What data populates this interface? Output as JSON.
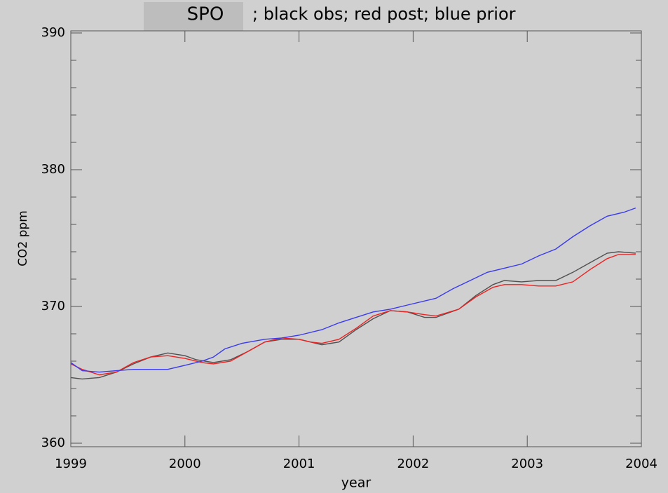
{
  "chart_data": {
    "type": "line",
    "title": "SPO",
    "subtitle": "; black obs; red post; blue prior",
    "xlabel": "year",
    "ylabel": "CO2 ppm",
    "xlim": [
      1999,
      2004
    ],
    "xticks": [
      1999,
      2000,
      2001,
      2002,
      2003,
      2004
    ],
    "ylim": [
      360,
      390
    ],
    "yticks": [
      360,
      370,
      380,
      390
    ],
    "yminorticks": [
      362,
      364,
      366,
      368,
      372,
      374,
      376,
      378,
      382,
      384,
      386,
      388
    ],
    "series": [
      {
        "color": "#505050",
        "x": [
          1999.0,
          1999.1,
          1999.25,
          1999.4,
          1999.55,
          1999.7,
          1999.85,
          2000.0,
          2000.1,
          2000.25,
          2000.4,
          2000.55,
          2000.7,
          2000.85,
          2001.0,
          2001.1,
          2001.2,
          2001.35,
          2001.5,
          2001.65,
          2001.8,
          2001.95,
          2002.1,
          2002.2,
          2002.4,
          2002.55,
          2002.7,
          2002.8,
          2002.95,
          2003.1,
          2003.25,
          2003.4,
          2003.55,
          2003.7,
          2003.8,
          2003.95
        ],
        "values": [
          364.8,
          364.7,
          364.8,
          365.2,
          365.8,
          366.3,
          366.6,
          366.4,
          366.1,
          365.9,
          366.1,
          366.7,
          367.4,
          367.6,
          367.6,
          367.4,
          367.2,
          367.4,
          368.3,
          369.1,
          369.7,
          369.6,
          369.2,
          369.2,
          369.8,
          370.8,
          371.6,
          371.9,
          371.8,
          371.9,
          371.9,
          372.5,
          373.2,
          373.9,
          374.0,
          373.9
        ]
      },
      {
        "color": "#f02020",
        "x": [
          1999.0,
          1999.1,
          1999.25,
          1999.4,
          1999.55,
          1999.7,
          1999.85,
          2000.0,
          2000.15,
          2000.25,
          2000.4,
          2000.55,
          2000.7,
          2000.85,
          2001.0,
          2001.1,
          2001.2,
          2001.35,
          2001.5,
          2001.65,
          2001.8,
          2001.95,
          2002.1,
          2002.2,
          2002.4,
          2002.55,
          2002.7,
          2002.8,
          2002.95,
          2003.1,
          2003.25,
          2003.4,
          2003.55,
          2003.7,
          2003.8,
          2003.95
        ],
        "values": [
          365.8,
          365.4,
          365.0,
          365.2,
          365.9,
          366.3,
          366.4,
          366.2,
          365.9,
          365.8,
          366.0,
          366.7,
          367.4,
          367.7,
          367.6,
          367.4,
          367.3,
          367.6,
          368.4,
          369.3,
          369.7,
          369.6,
          369.4,
          369.3,
          369.8,
          370.7,
          371.4,
          371.6,
          371.6,
          371.5,
          371.5,
          371.8,
          372.7,
          373.5,
          373.8,
          373.8
        ]
      },
      {
        "color": "#3a3af0",
        "x": [
          1999.0,
          1999.1,
          1999.25,
          1999.4,
          1999.55,
          1999.7,
          1999.85,
          2000.0,
          2000.15,
          2000.25,
          2000.35,
          2000.5,
          2000.7,
          2000.85,
          2001.0,
          2001.2,
          2001.35,
          2001.5,
          2001.65,
          2001.8,
          2001.95,
          2002.2,
          2002.35,
          2002.5,
          2002.65,
          2002.8,
          2002.95,
          2003.1,
          2003.25,
          2003.4,
          2003.55,
          2003.7,
          2003.85,
          2003.95
        ],
        "values": [
          365.9,
          365.3,
          365.2,
          365.3,
          365.4,
          365.4,
          365.4,
          365.7,
          366.0,
          366.3,
          366.9,
          367.3,
          367.6,
          367.7,
          367.9,
          368.3,
          368.8,
          369.2,
          369.6,
          369.8,
          370.1,
          370.6,
          371.3,
          371.9,
          372.5,
          372.8,
          373.1,
          373.7,
          374.2,
          375.1,
          375.9,
          376.6,
          376.9,
          377.2
        ]
      }
    ]
  }
}
